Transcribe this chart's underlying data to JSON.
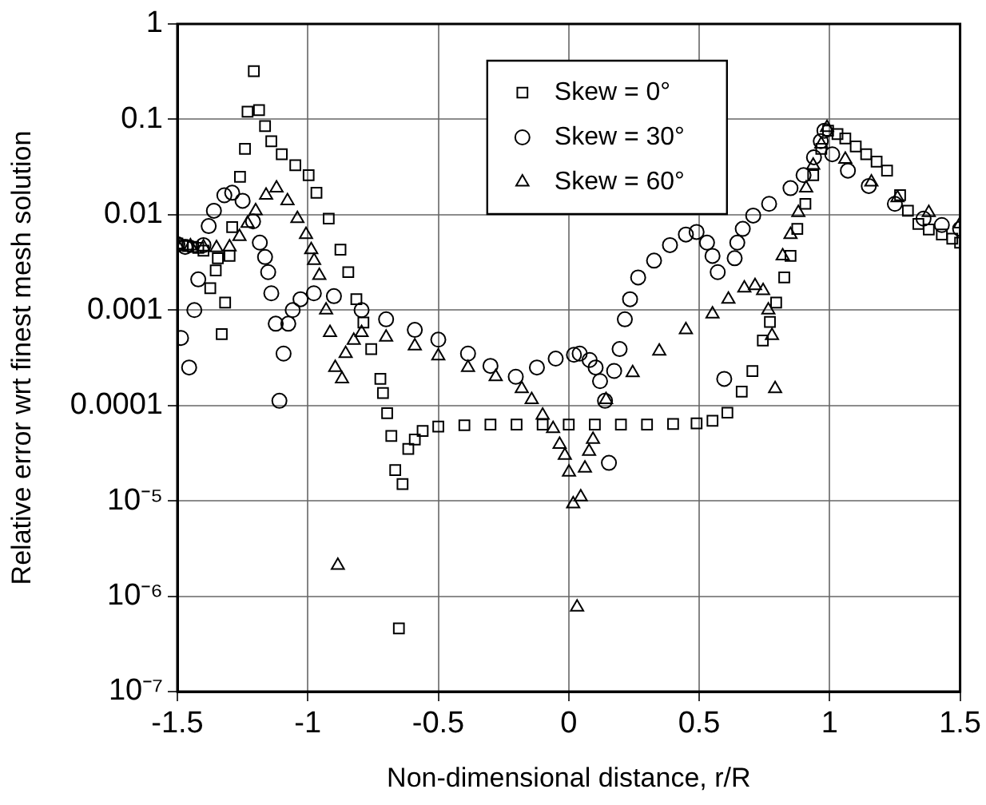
{
  "chart_data": {
    "type": "scatter",
    "xlabel": "Non-dimensional distance, r/R",
    "ylabel": "Relative error wrt finest mesh solution",
    "xlim": [
      -1.5,
      1.5
    ],
    "xticks": [
      -1.5,
      -1,
      -0.5,
      0,
      0.5,
      1,
      1.5
    ],
    "ylim": [
      1e-07,
      1
    ],
    "yticks": [
      {
        "value": 1e-07,
        "label": "10⁻⁷"
      },
      {
        "value": 1e-06,
        "label": "10⁻⁶"
      },
      {
        "value": 1e-05,
        "label": "10⁻⁵"
      },
      0.0001,
      0.001,
      0.01,
      0.1,
      1
    ],
    "log": "y",
    "grid": true,
    "legend": "top",
    "series": [
      {
        "name": "Skew = 0°",
        "color": "#000000",
        "marker": "square",
        "x": [
          -1.5,
          -1.48,
          -1.46,
          -1.44,
          -1.42,
          -1.4,
          -1.374,
          -1.353,
          -1.345,
          -1.33,
          -1.317,
          -1.3,
          -1.29,
          -1.26,
          -1.241,
          -1.231,
          -1.207,
          -1.187,
          -1.164,
          -1.14,
          -1.1,
          -1.048,
          -0.997,
          -0.967,
          -0.92,
          -0.875,
          -0.845,
          -0.814,
          -0.787,
          -0.757,
          -0.722,
          -0.712,
          -0.696,
          -0.68,
          -0.665,
          -0.651,
          -0.637,
          -0.615,
          -0.59,
          -0.56,
          -0.5,
          -0.4,
          -0.3,
          -0.2,
          -0.1,
          0,
          0.1,
          0.2,
          0.3,
          0.4,
          0.49,
          0.551,
          0.608,
          0.663,
          0.704,
          0.744,
          0.771,
          0.795,
          0.826,
          0.85,
          0.876,
          0.907,
          0.937,
          0.968,
          0.994,
          1.03,
          1.06,
          1.1,
          1.14,
          1.18,
          1.22,
          1.27,
          1.3,
          1.34,
          1.38,
          1.43,
          1.47,
          1.5
        ],
        "values": [
          0.005,
          0.0048,
          0.0047,
          0.0046,
          0.0045,
          0.0042,
          0.0017,
          0.0026,
          0.0035,
          0.00056,
          0.0012,
          0.0037,
          0.0074,
          0.025,
          0.049,
          0.12,
          0.32,
          0.125,
          0.085,
          0.059,
          0.043,
          0.033,
          0.026,
          0.017,
          0.0091,
          0.0043,
          0.0025,
          0.0013,
          0.00074,
          0.00039,
          0.00019,
          0.000135,
          8.3e-05,
          4.8e-05,
          2.1e-05,
          4.6e-07,
          1.5e-05,
          3.5e-05,
          4.4e-05,
          5.4e-05,
          6e-05,
          6.2e-05,
          6.3e-05,
          6.3e-05,
          6.3e-05,
          6.3e-05,
          6.3e-05,
          6.3e-05,
          6.3e-05,
          6.4e-05,
          6.5e-05,
          6.9e-05,
          8.4e-05,
          0.00014,
          0.00023,
          0.00048,
          0.00075,
          0.0012,
          0.0022,
          0.0037,
          0.0071,
          0.013,
          0.026,
          0.049,
          0.076,
          0.07,
          0.063,
          0.052,
          0.043,
          0.036,
          0.029,
          0.016,
          0.011,
          0.008,
          0.007,
          0.0062,
          0.0056,
          0.0051
        ]
      },
      {
        "name": "Skew = 30°",
        "color": "#000000",
        "marker": "circle",
        "x": [
          -1.5,
          -1.486,
          -1.47,
          -1.455,
          -1.435,
          -1.42,
          -1.4,
          -1.38,
          -1.36,
          -1.32,
          -1.29,
          -1.25,
          -1.21,
          -1.184,
          -1.164,
          -1.152,
          -1.14,
          -1.123,
          -1.109,
          -1.093,
          -1.075,
          -1.058,
          -1.028,
          -0.977,
          -0.9,
          -0.794,
          -0.7,
          -0.59,
          -0.5,
          -0.386,
          -0.3,
          -0.203,
          -0.122,
          -0.05,
          0.02,
          0.042,
          0.08,
          0.103,
          0.12,
          0.139,
          0.154,
          0.174,
          0.195,
          0.215,
          0.235,
          0.266,
          0.327,
          0.388,
          0.449,
          0.49,
          0.53,
          0.551,
          0.571,
          0.596,
          0.636,
          0.646,
          0.667,
          0.707,
          0.768,
          0.85,
          0.9,
          0.94,
          0.966,
          0.98,
          1.01,
          1.07,
          1.15,
          1.25,
          1.36,
          1.43,
          1.5
        ],
        "values": [
          0.0049,
          0.00051,
          0.0046,
          0.00025,
          0.001,
          0.0021,
          0.0048,
          0.0076,
          0.011,
          0.016,
          0.017,
          0.014,
          0.0085,
          0.0051,
          0.0036,
          0.0025,
          0.0015,
          0.00072,
          0.000112,
          0.00035,
          0.00072,
          0.001,
          0.0013,
          0.0015,
          0.0014,
          0.001,
          0.0008,
          0.00062,
          0.00049,
          0.00035,
          0.00026,
          0.0002,
          0.00025,
          0.00031,
          0.00034,
          0.00035,
          0.0003,
          0.00025,
          0.00018,
          0.000112,
          2.5e-05,
          0.00023,
          0.00039,
          0.0008,
          0.0013,
          0.0022,
          0.0033,
          0.0048,
          0.0062,
          0.0066,
          0.0051,
          0.0037,
          0.0025,
          0.00019,
          0.0035,
          0.0051,
          0.0071,
          0.0098,
          0.013,
          0.019,
          0.026,
          0.04,
          0.059,
          0.076,
          0.043,
          0.029,
          0.02,
          0.013,
          0.0091,
          0.0078,
          0.0071
        ]
      },
      {
        "name": "Skew = 60°",
        "color": "#000000",
        "marker": "triangle",
        "x": [
          -1.5,
          -1.45,
          -1.4,
          -1.35,
          -1.3,
          -1.262,
          -1.231,
          -1.2,
          -1.16,
          -1.12,
          -1.078,
          -1.04,
          -1.007,
          -0.987,
          -0.976,
          -0.956,
          -0.93,
          -0.915,
          -0.895,
          -0.885,
          -0.869,
          -0.855,
          -0.824,
          -0.794,
          -0.7,
          -0.59,
          -0.5,
          -0.386,
          -0.28,
          -0.18,
          -0.142,
          -0.1,
          -0.06,
          -0.035,
          -0.015,
          0.001,
          0.017,
          0.032,
          0.046,
          0.062,
          0.078,
          0.093,
          0.143,
          0.245,
          0.347,
          0.449,
          0.551,
          0.612,
          0.673,
          0.714,
          0.745,
          0.765,
          0.779,
          0.791,
          0.82,
          0.85,
          0.88,
          0.91,
          0.937,
          0.968,
          0.99,
          1.06,
          1.16,
          1.26,
          1.38,
          1.5
        ],
        "values": [
          0.0048,
          0.0047,
          0.0046,
          0.0045,
          0.0046,
          0.0059,
          0.0081,
          0.011,
          0.016,
          0.019,
          0.014,
          0.0091,
          0.0062,
          0.0043,
          0.0033,
          0.0023,
          0.001,
          0.00058,
          0.00025,
          2.1e-06,
          0.00019,
          0.00035,
          0.00048,
          0.00058,
          0.00052,
          0.00042,
          0.00033,
          0.00025,
          0.0002,
          0.00015,
          0.000115,
          7.9e-05,
          5.7e-05,
          3.9e-05,
          3e-05,
          2e-05,
          9.3e-06,
          7.7e-07,
          1.1e-05,
          2.2e-05,
          3.3e-05,
          4.4e-05,
          0.000115,
          0.00022,
          0.00037,
          0.00062,
          0.00091,
          0.0013,
          0.0017,
          0.0018,
          0.0016,
          0.001,
          0.00054,
          0.00015,
          0.0037,
          0.0062,
          0.0105,
          0.019,
          0.033,
          0.055,
          0.082,
          0.038,
          0.022,
          0.015,
          0.0105,
          0.008
        ]
      }
    ]
  }
}
